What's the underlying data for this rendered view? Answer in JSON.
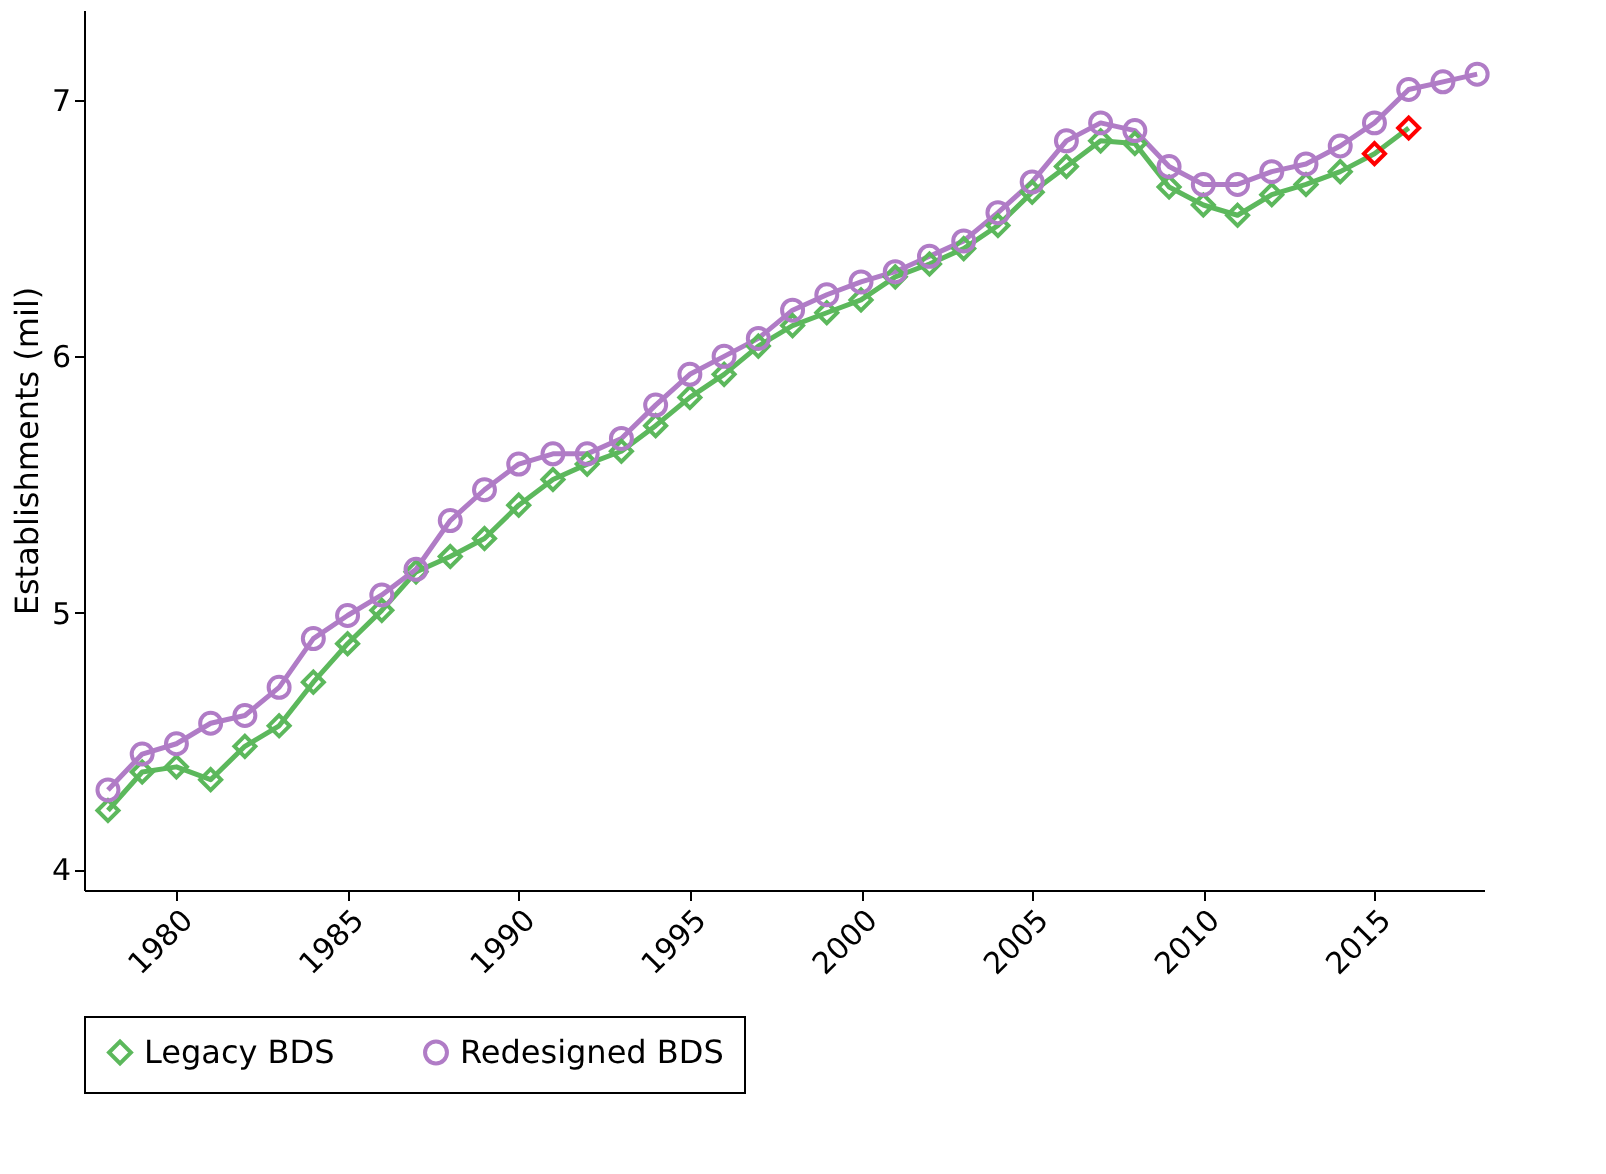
{
  "chart_data": {
    "type": "line",
    "ylabel": "Establishments (mil)",
    "x": [
      1978,
      1979,
      1980,
      1981,
      1982,
      1983,
      1984,
      1985,
      1986,
      1987,
      1988,
      1989,
      1990,
      1991,
      1992,
      1993,
      1994,
      1995,
      1996,
      1997,
      1998,
      1999,
      2000,
      2001,
      2002,
      2003,
      2004,
      2005,
      2006,
      2007,
      2008,
      2009,
      2010,
      2011,
      2012,
      2013,
      2014,
      2015,
      2016,
      2017,
      2018
    ],
    "series": [
      {
        "name": "Legacy BDS",
        "color": "#5cb85c",
        "marker": "diamond",
        "colors": [
          "#5cb85c",
          "#5cb85c",
          "#5cb85c",
          "#5cb85c",
          "#5cb85c",
          "#5cb85c",
          "#5cb85c",
          "#5cb85c",
          "#5cb85c",
          "#5cb85c",
          "#5cb85c",
          "#5cb85c",
          "#5cb85c",
          "#5cb85c",
          "#5cb85c",
          "#5cb85c",
          "#5cb85c",
          "#5cb85c",
          "#5cb85c",
          "#5cb85c",
          "#5cb85c",
          "#5cb85c",
          "#5cb85c",
          "#5cb85c",
          "#5cb85c",
          "#5cb85c",
          "#5cb85c",
          "#5cb85c",
          "#5cb85c",
          "#5cb85c",
          "#5cb85c",
          "#5cb85c",
          "#5cb85c",
          "#5cb85c",
          "#5cb85c",
          "#5cb85c",
          "#5cb85c",
          "#ff0000",
          "#ff0000",
          null,
          null
        ],
        "values": [
          4.23,
          4.38,
          4.4,
          4.35,
          4.48,
          4.56,
          4.73,
          4.88,
          5.01,
          5.16,
          5.22,
          5.29,
          5.42,
          5.52,
          5.58,
          5.63,
          5.73,
          5.84,
          5.93,
          6.04,
          6.12,
          6.17,
          6.22,
          6.31,
          6.36,
          6.42,
          6.51,
          6.64,
          6.74,
          6.84,
          6.83,
          6.66,
          6.59,
          6.55,
          6.63,
          6.67,
          6.72,
          6.79,
          6.89,
          null,
          null
        ]
      },
      {
        "name": "Redesigned BDS",
        "color": "#b07cc6",
        "marker": "circle",
        "values": [
          4.31,
          4.45,
          4.49,
          4.57,
          4.6,
          4.71,
          4.9,
          4.99,
          5.07,
          5.17,
          5.36,
          5.48,
          5.58,
          5.62,
          5.62,
          5.68,
          5.81,
          5.93,
          6.0,
          6.07,
          6.18,
          6.24,
          6.29,
          6.33,
          6.39,
          6.45,
          6.56,
          6.68,
          6.84,
          6.91,
          6.88,
          6.74,
          6.67,
          6.67,
          6.72,
          6.75,
          6.82,
          6.91,
          7.04,
          7.07,
          7.1
        ]
      }
    ],
    "xlim": [
      1977.3,
      2018.2
    ],
    "xticks": [
      1980,
      1985,
      1990,
      1995,
      2000,
      2005,
      2010,
      2015
    ],
    "ylim": [
      3.92,
      7.35
    ],
    "yticks": [
      4,
      5,
      6,
      7
    ],
    "grid": false,
    "legend": "bottom",
    "line_style": "solid"
  }
}
